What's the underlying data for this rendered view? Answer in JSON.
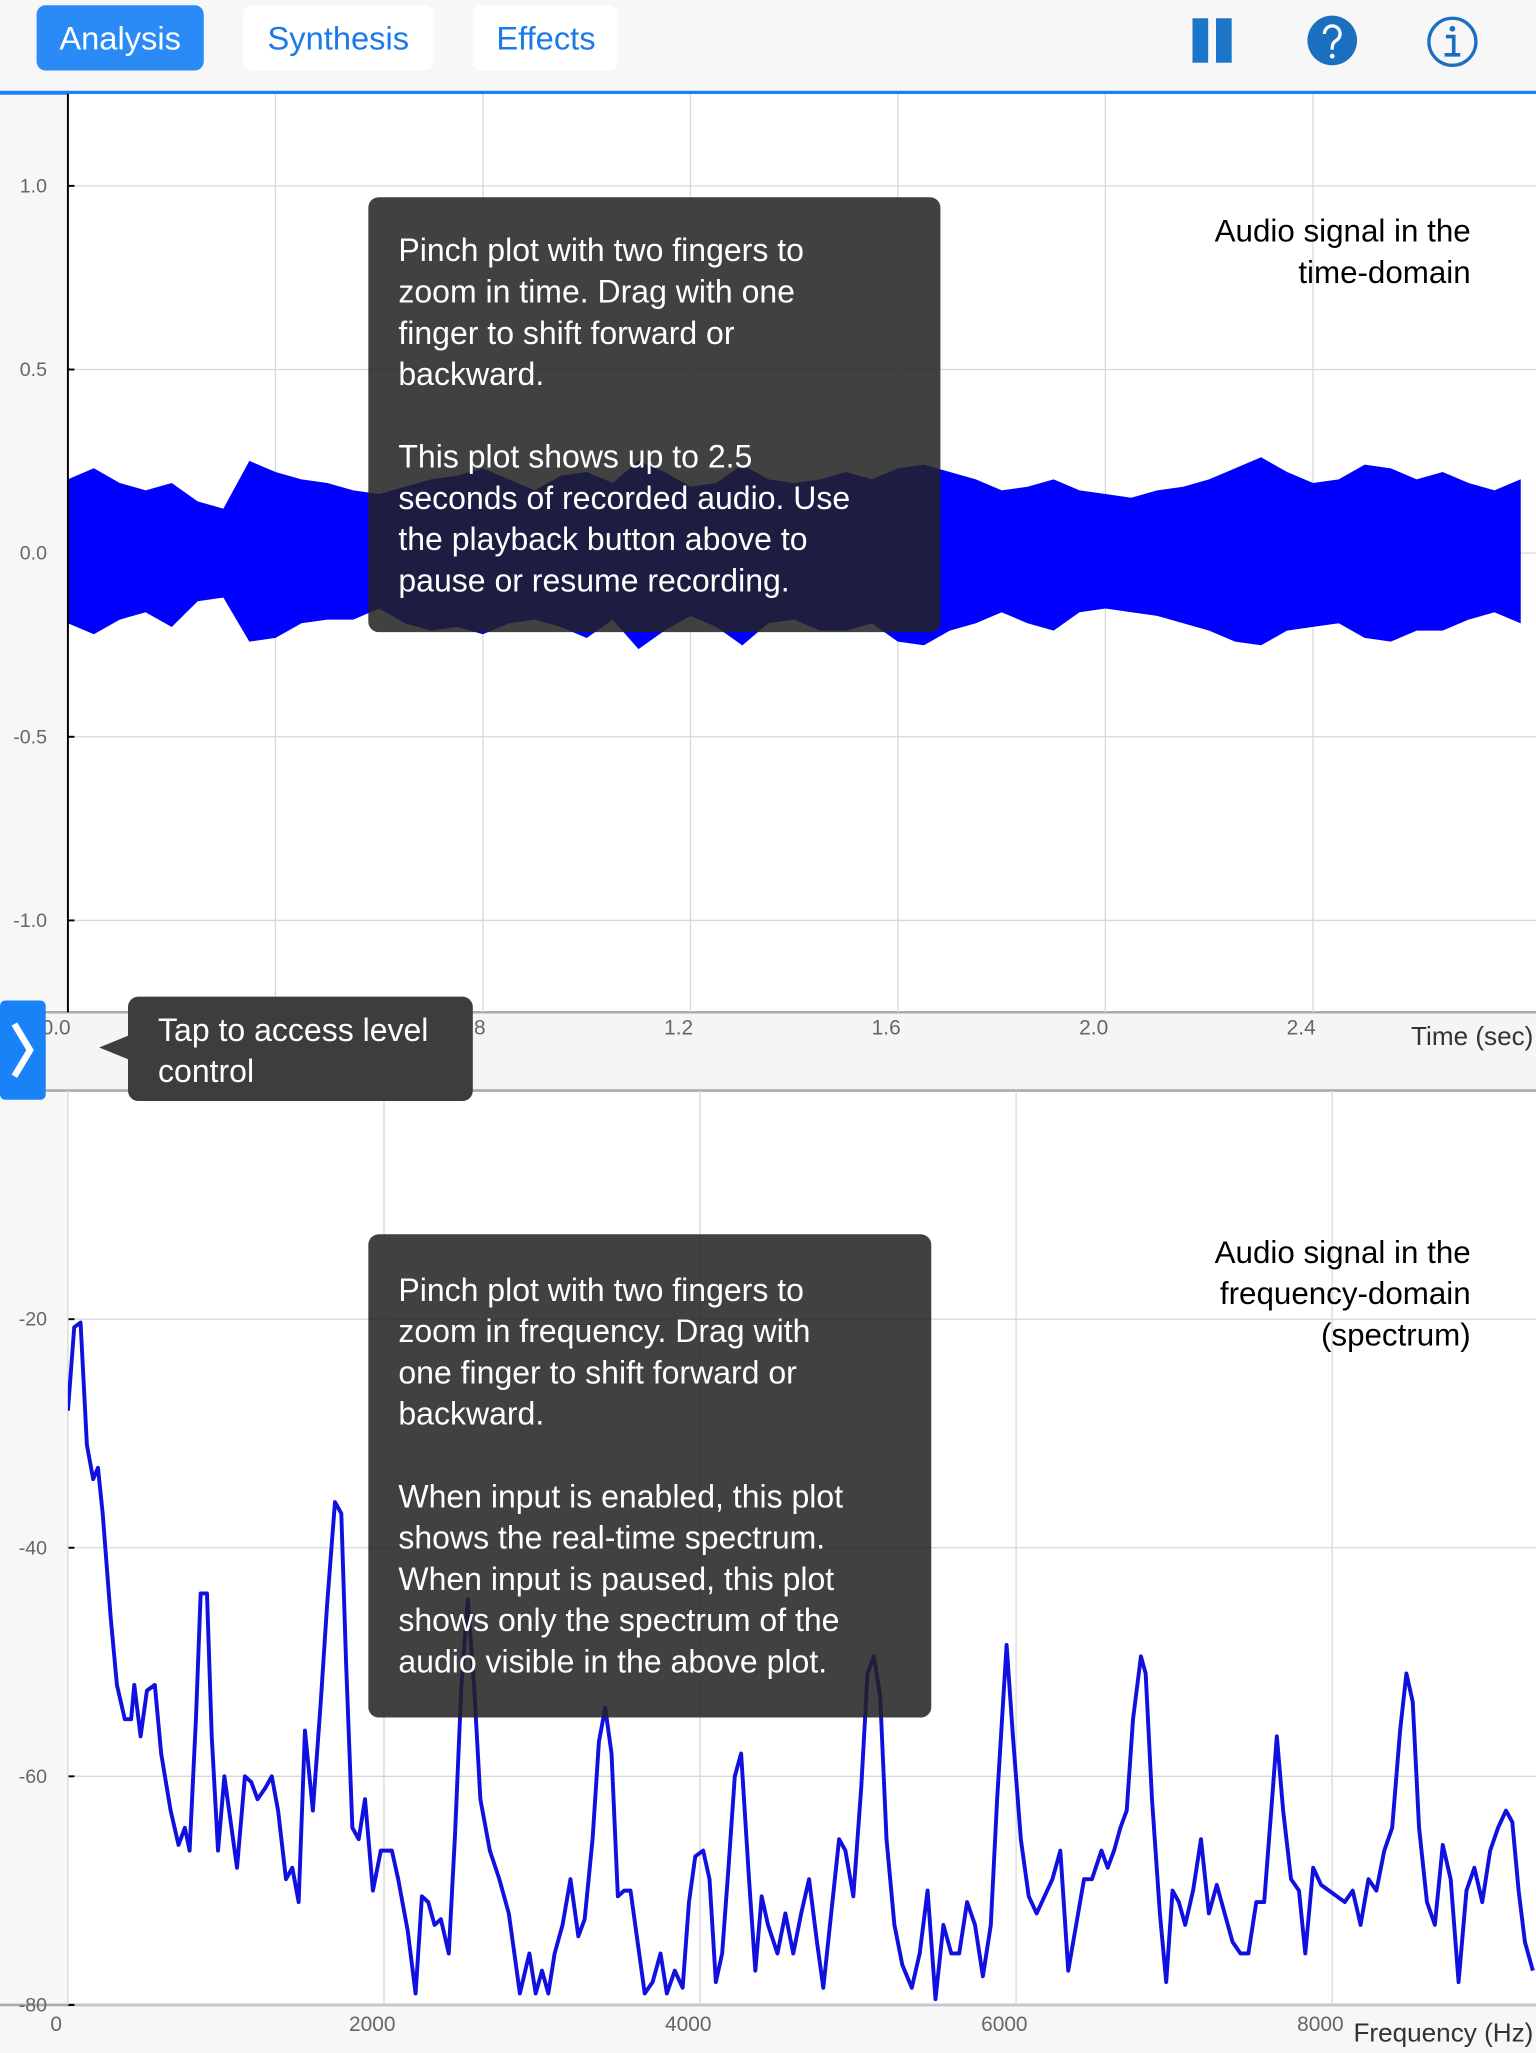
{
  "tabs": [
    "Analysis",
    "Synthesis",
    "Effects"
  ],
  "chart_data": [
    {
      "type": "area",
      "annotation": [
        "Audio signal in the",
        "time-domain"
      ],
      "xlabel": "Time (sec)",
      "x": [
        0,
        0.05,
        0.1,
        0.15,
        0.2,
        0.25,
        0.3,
        0.35,
        0.4,
        0.45,
        0.5,
        0.55,
        0.6,
        0.65,
        0.7,
        0.75,
        0.8,
        0.85,
        0.9,
        0.95,
        1,
        1.05,
        1.1,
        1.15,
        1.2,
        1.25,
        1.3,
        1.35,
        1.4,
        1.45,
        1.5,
        1.55,
        1.6,
        1.65,
        1.7,
        1.75,
        1.8,
        1.85,
        1.9,
        1.95,
        2,
        2.05,
        2.1,
        2.15,
        2.2,
        2.25,
        2.3,
        2.35,
        2.4,
        2.45,
        2.5,
        2.55,
        2.6,
        2.65,
        2.7,
        2.75,
        2.8
      ],
      "series": [
        {
          "color": "#0000ff",
          "values": [
            0.2,
            0.23,
            0.19,
            0.17,
            0.19,
            0.14,
            0.12,
            0.25,
            0.22,
            0.2,
            0.19,
            0.17,
            0.16,
            0.18,
            0.2,
            0.21,
            0.23,
            0.2,
            0.17,
            0.21,
            0.22,
            0.19,
            0.25,
            0.22,
            0.18,
            0.19,
            0.24,
            0.2,
            0.19,
            0.2,
            0.22,
            0.2,
            0.23,
            0.24,
            0.22,
            0.2,
            0.17,
            0.18,
            0.2,
            0.17,
            0.16,
            0.15,
            0.17,
            0.18,
            0.2,
            0.23,
            0.26,
            0.22,
            0.19,
            0.2,
            0.24,
            0.23,
            0.2,
            0.22,
            0.19,
            0.17,
            0.2
          ]
        },
        {
          "color": "#0000ff",
          "values": [
            -0.19,
            -0.22,
            -0.18,
            -0.16,
            -0.2,
            -0.13,
            -0.12,
            -0.24,
            -0.23,
            -0.19,
            -0.18,
            -0.18,
            -0.15,
            -0.19,
            -0.21,
            -0.2,
            -0.22,
            -0.19,
            -0.18,
            -0.2,
            -0.23,
            -0.18,
            -0.26,
            -0.21,
            -0.17,
            -0.2,
            -0.25,
            -0.19,
            -0.18,
            -0.21,
            -0.21,
            -0.19,
            -0.24,
            -0.25,
            -0.21,
            -0.19,
            -0.16,
            -0.19,
            -0.21,
            -0.16,
            -0.15,
            -0.16,
            -0.17,
            -0.19,
            -0.21,
            -0.24,
            -0.25,
            -0.21,
            -0.2,
            -0.19,
            -0.23,
            -0.24,
            -0.21,
            -0.21,
            -0.18,
            -0.16,
            -0.19
          ]
        }
      ],
      "xlim": [
        0,
        2.83
      ],
      "ylim": [
        -1.25,
        1.25
      ],
      "xticks": [
        {
          "value": 0,
          "label": "0.0"
        },
        0.4,
        0.8,
        1.2,
        1.6,
        {
          "value": 2,
          "label": "2.0"
        },
        2.4
      ],
      "yticks": [
        {
          "value": 1,
          "label": "1.0"
        },
        0.5,
        {
          "value": 0,
          "label": "0.0"
        },
        -0.5,
        {
          "value": -1,
          "label": "-1.0"
        }
      ],
      "grid": true
    },
    {
      "type": "line",
      "annotation": [
        "Audio signal in the",
        "frequency-domain",
        "(spectrum)"
      ],
      "xlabel": "Frequency (Hz)",
      "color": "#1010e0",
      "x": [
        0,
        40,
        80,
        120,
        160,
        190,
        220,
        270,
        310,
        360,
        400,
        420,
        460,
        500,
        550,
        590,
        650,
        700,
        740,
        770,
        810,
        840,
        880,
        910,
        950,
        990,
        1030,
        1070,
        1120,
        1160,
        1200,
        1250,
        1290,
        1330,
        1380,
        1420,
        1460,
        1500,
        1550,
        1600,
        1640,
        1690,
        1730,
        1760,
        1800,
        1840,
        1880,
        1930,
        1980,
        2050,
        2090,
        2150,
        2200,
        2240,
        2280,
        2320,
        2360,
        2410,
        2450,
        2490,
        2530,
        2570,
        2610,
        2670,
        2730,
        2790,
        2860,
        2920,
        2960,
        3000,
        3040,
        3080,
        3130,
        3180,
        3230,
        3270,
        3320,
        3360,
        3400,
        3440,
        3480,
        3520,
        3560,
        3600,
        3650,
        3700,
        3750,
        3790,
        3840,
        3890,
        3930,
        3970,
        4020,
        4060,
        4100,
        4140,
        4180,
        4220,
        4260,
        4310,
        4350,
        4390,
        4430,
        4490,
        4540,
        4590,
        4640,
        4690,
        4740,
        4780,
        4830,
        4880,
        4920,
        4970,
        5020,
        5060,
        5100,
        5140,
        5180,
        5230,
        5280,
        5340,
        5390,
        5440,
        5490,
        5540,
        5590,
        5640,
        5690,
        5740,
        5790,
        5840,
        5880,
        5920,
        5940,
        5980,
        6030,
        6080,
        6130,
        6180,
        6230,
        6280,
        6330,
        6380,
        6430,
        6480,
        6540,
        6580,
        6620,
        6660,
        6700,
        6740,
        6790,
        6820,
        6860,
        6910,
        6950,
        6990,
        7030,
        7070,
        7120,
        7170,
        7220,
        7270,
        7320,
        7370,
        7420,
        7470,
        7520,
        7570,
        7620,
        7650,
        7690,
        7740,
        7790,
        7830,
        7880,
        7930,
        7980,
        8030,
        8080,
        8130,
        8180,
        8230,
        8280,
        8330,
        8380,
        8430,
        8470,
        8510,
        8550,
        8600,
        8650,
        8700,
        8750,
        8800,
        8850,
        8900,
        8950,
        9000,
        9050,
        9100,
        9140,
        9180,
        9220,
        9270
      ],
      "values": [
        -28,
        -20.7,
        -20.3,
        -31,
        -34,
        -33,
        -37,
        -46,
        -52,
        -55,
        -55,
        -52,
        -56.5,
        -52.5,
        -52,
        -58,
        -63,
        -66,
        -64.5,
        -66.5,
        -55,
        -44,
        -44,
        -56.5,
        -66.5,
        -60,
        -64,
        -68,
        -60,
        -60.5,
        -62,
        -61,
        -60,
        -63,
        -69,
        -68,
        -71,
        -56,
        -63,
        -53.5,
        -45,
        -36,
        -37,
        -50,
        -64.5,
        -65.5,
        -62,
        -70,
        -66.5,
        -66.5,
        -69,
        -73.5,
        -79,
        -70.5,
        -71,
        -73,
        -72.5,
        -75.5,
        -65,
        -52,
        -44.5,
        -52,
        -62,
        -66.5,
        -69,
        -72,
        -79,
        -75.5,
        -79,
        -77,
        -79,
        -75.5,
        -73,
        -69,
        -74,
        -72.5,
        -65.5,
        -57,
        -54,
        -58,
        -70.5,
        -70,
        -70,
        -74,
        -79,
        -78,
        -75.5,
        -79,
        -77,
        -78.5,
        -71,
        -67,
        -66.5,
        -69,
        -78,
        -75.5,
        -68,
        -60,
        -58,
        -69,
        -77,
        -70.5,
        -73,
        -75.5,
        -72,
        -75.5,
        -72,
        -69,
        -74.5,
        -78.5,
        -72,
        -65.5,
        -66.5,
        -70.5,
        -61,
        -51,
        -49.5,
        -53,
        -65.5,
        -73,
        -76.5,
        -78.5,
        -75.5,
        -70,
        -79.5,
        -73,
        -75.5,
        -75.5,
        -71,
        -73,
        -77.5,
        -73,
        -62,
        -53,
        -48.5,
        -56.5,
        -65.5,
        -70.5,
        -72,
        -70.5,
        -69,
        -66.5,
        -77,
        -73,
        -69,
        -69,
        -66.5,
        -68,
        -66.5,
        -64.5,
        -63,
        -55,
        -49.5,
        -51,
        -62,
        -72,
        -78,
        -70,
        -71,
        -73,
        -70,
        -65.5,
        -72,
        -69.5,
        -72,
        -74.5,
        -75.5,
        -75.5,
        -71,
        -71,
        -62,
        -56.5,
        -63,
        -69,
        -70,
        -75.5,
        -68,
        -69.5,
        -70,
        -70.5,
        -71,
        -70,
        -73,
        -69,
        -70,
        -66.5,
        -64.5,
        -56,
        -51,
        -53.5,
        -64.5,
        -71,
        -73,
        -66,
        -69,
        -78,
        -70,
        -68,
        -71,
        -66.5,
        -64.5,
        -63,
        -64,
        -70,
        -74.5,
        -77
      ],
      "xlim": [
        0,
        9290
      ],
      "ylim": [
        -80,
        0
      ],
      "xticks": [
        0,
        2000,
        4000,
        6000,
        8000
      ],
      "yticks": [
        -20,
        -40,
        -60,
        -80
      ],
      "grid": true
    }
  ],
  "tooltips": {
    "time": [
      [
        "Pinch plot with two fingers to",
        "zoom in time. Drag with one",
        "finger to shift forward or",
        "backward."
      ],
      [
        "This plot shows up to 2.5",
        "seconds of recorded audio. Use",
        "the playback button above to",
        "pause or resume recording."
      ]
    ],
    "frequency": [
      [
        "Pinch plot with two fingers to",
        "zoom in frequency. Drag with",
        "one finger to shift forward or",
        "backward."
      ],
      [
        "When input is enabled, this plot",
        "shows the real-time spectrum.",
        "When input is paused, this plot",
        "shows only the spectrum of the",
        "audio visible in the above plot."
      ]
    ],
    "level": [
      "Tap to access level",
      "control"
    ]
  }
}
